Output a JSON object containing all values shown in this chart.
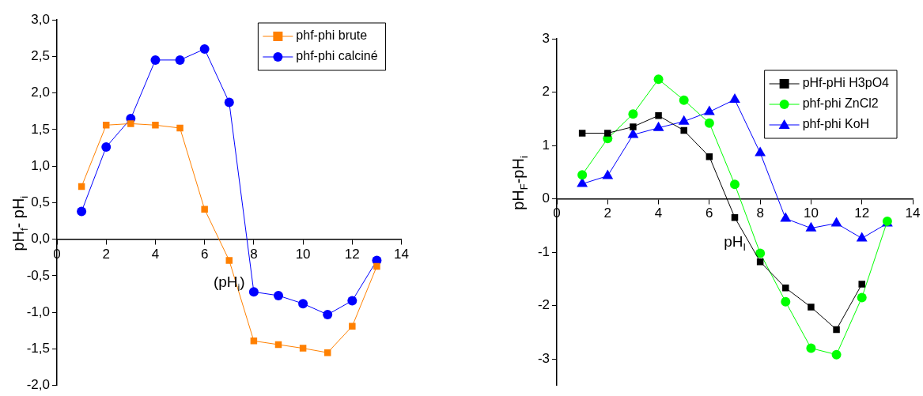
{
  "chart_data": [
    {
      "type": "line",
      "xlabel": "(pH$_{i}$)",
      "ylabel": "pH$_{f}$- pH$_{i}$",
      "x": [
        1,
        2,
        3,
        4,
        5,
        6,
        7,
        8,
        9,
        10,
        11,
        12,
        13
      ],
      "series": [
        {
          "name": "phf-phi brute",
          "color": "#ff8000",
          "marker": "square",
          "values": [
            0.72,
            1.56,
            1.58,
            1.56,
            1.52,
            0.41,
            -0.29,
            -1.39,
            -1.44,
            -1.49,
            -1.55,
            -1.19,
            -0.37
          ]
        },
        {
          "name": "phf-phi calciné",
          "color": "#0000ff",
          "marker": "circle",
          "values": [
            0.38,
            1.26,
            1.65,
            2.45,
            2.45,
            2.6,
            1.87,
            -0.72,
            -0.77,
            -0.88,
            -1.03,
            -0.84,
            -0.29
          ]
        }
      ],
      "xlim": [
        0,
        14
      ],
      "xticks": [
        0,
        2,
        4,
        6,
        8,
        10,
        12,
        14
      ],
      "ylim": [
        -2,
        3
      ],
      "yticks": [
        {
          "value": -2,
          "label": "-2,0"
        },
        {
          "value": -1.5,
          "label": "-1,5"
        },
        {
          "value": -1,
          "label": "-1,0"
        },
        {
          "value": -0.5,
          "label": "-0,5"
        },
        {
          "value": 0,
          "label": "0,0"
        },
        {
          "value": 0.5,
          "label": "0,5"
        },
        {
          "value": 1,
          "label": "1,0"
        },
        {
          "value": 1.5,
          "label": "1,5"
        },
        {
          "value": 2,
          "label": "2,0"
        },
        {
          "value": 2.5,
          "label": "2,5"
        },
        {
          "value": 3,
          "label": "3,0"
        }
      ],
      "grid": false,
      "legend": "top right",
      "line_style": "solid"
    },
    {
      "type": "line",
      "xlabel": "pH$_{I}$",
      "ylabel": "pH$_{F}$-pH$_{i}$",
      "x": [
        1,
        2,
        3,
        4,
        5,
        6,
        7,
        8,
        9,
        10,
        11,
        12,
        13
      ],
      "series": [
        {
          "name": "pHf-pHi H3pO4",
          "color": "#000000",
          "marker": "square",
          "values": [
            1.23,
            1.23,
            1.35,
            1.56,
            1.28,
            0.79,
            -0.35,
            -1.18,
            -1.67,
            -2.03,
            -2.45,
            -1.6,
            null
          ]
        },
        {
          "name": "phf-phi ZnCl2",
          "color": "#00ff00",
          "marker": "circle",
          "values": [
            0.45,
            1.13,
            1.59,
            2.24,
            1.85,
            1.42,
            0.27,
            -1.02,
            -1.93,
            -2.8,
            -2.92,
            -1.85,
            -0.42
          ]
        },
        {
          "name": "phf-phi KoH",
          "color": "#0000ff",
          "marker": "triangle",
          "values": [
            0.28,
            0.43,
            1.2,
            1.33,
            1.45,
            1.63,
            1.86,
            0.86,
            -0.37,
            -0.55,
            -0.46,
            -0.74,
            -0.46
          ]
        }
      ],
      "xlim": [
        0,
        14
      ],
      "xticks": [
        0,
        2,
        4,
        6,
        8,
        10,
        12,
        14
      ],
      "ylim": [
        -3.5,
        3
      ],
      "yticks": [
        -3,
        -2,
        -1,
        0,
        1,
        2,
        3
      ],
      "grid": false,
      "legend": "top right",
      "line_style": "solid"
    }
  ]
}
